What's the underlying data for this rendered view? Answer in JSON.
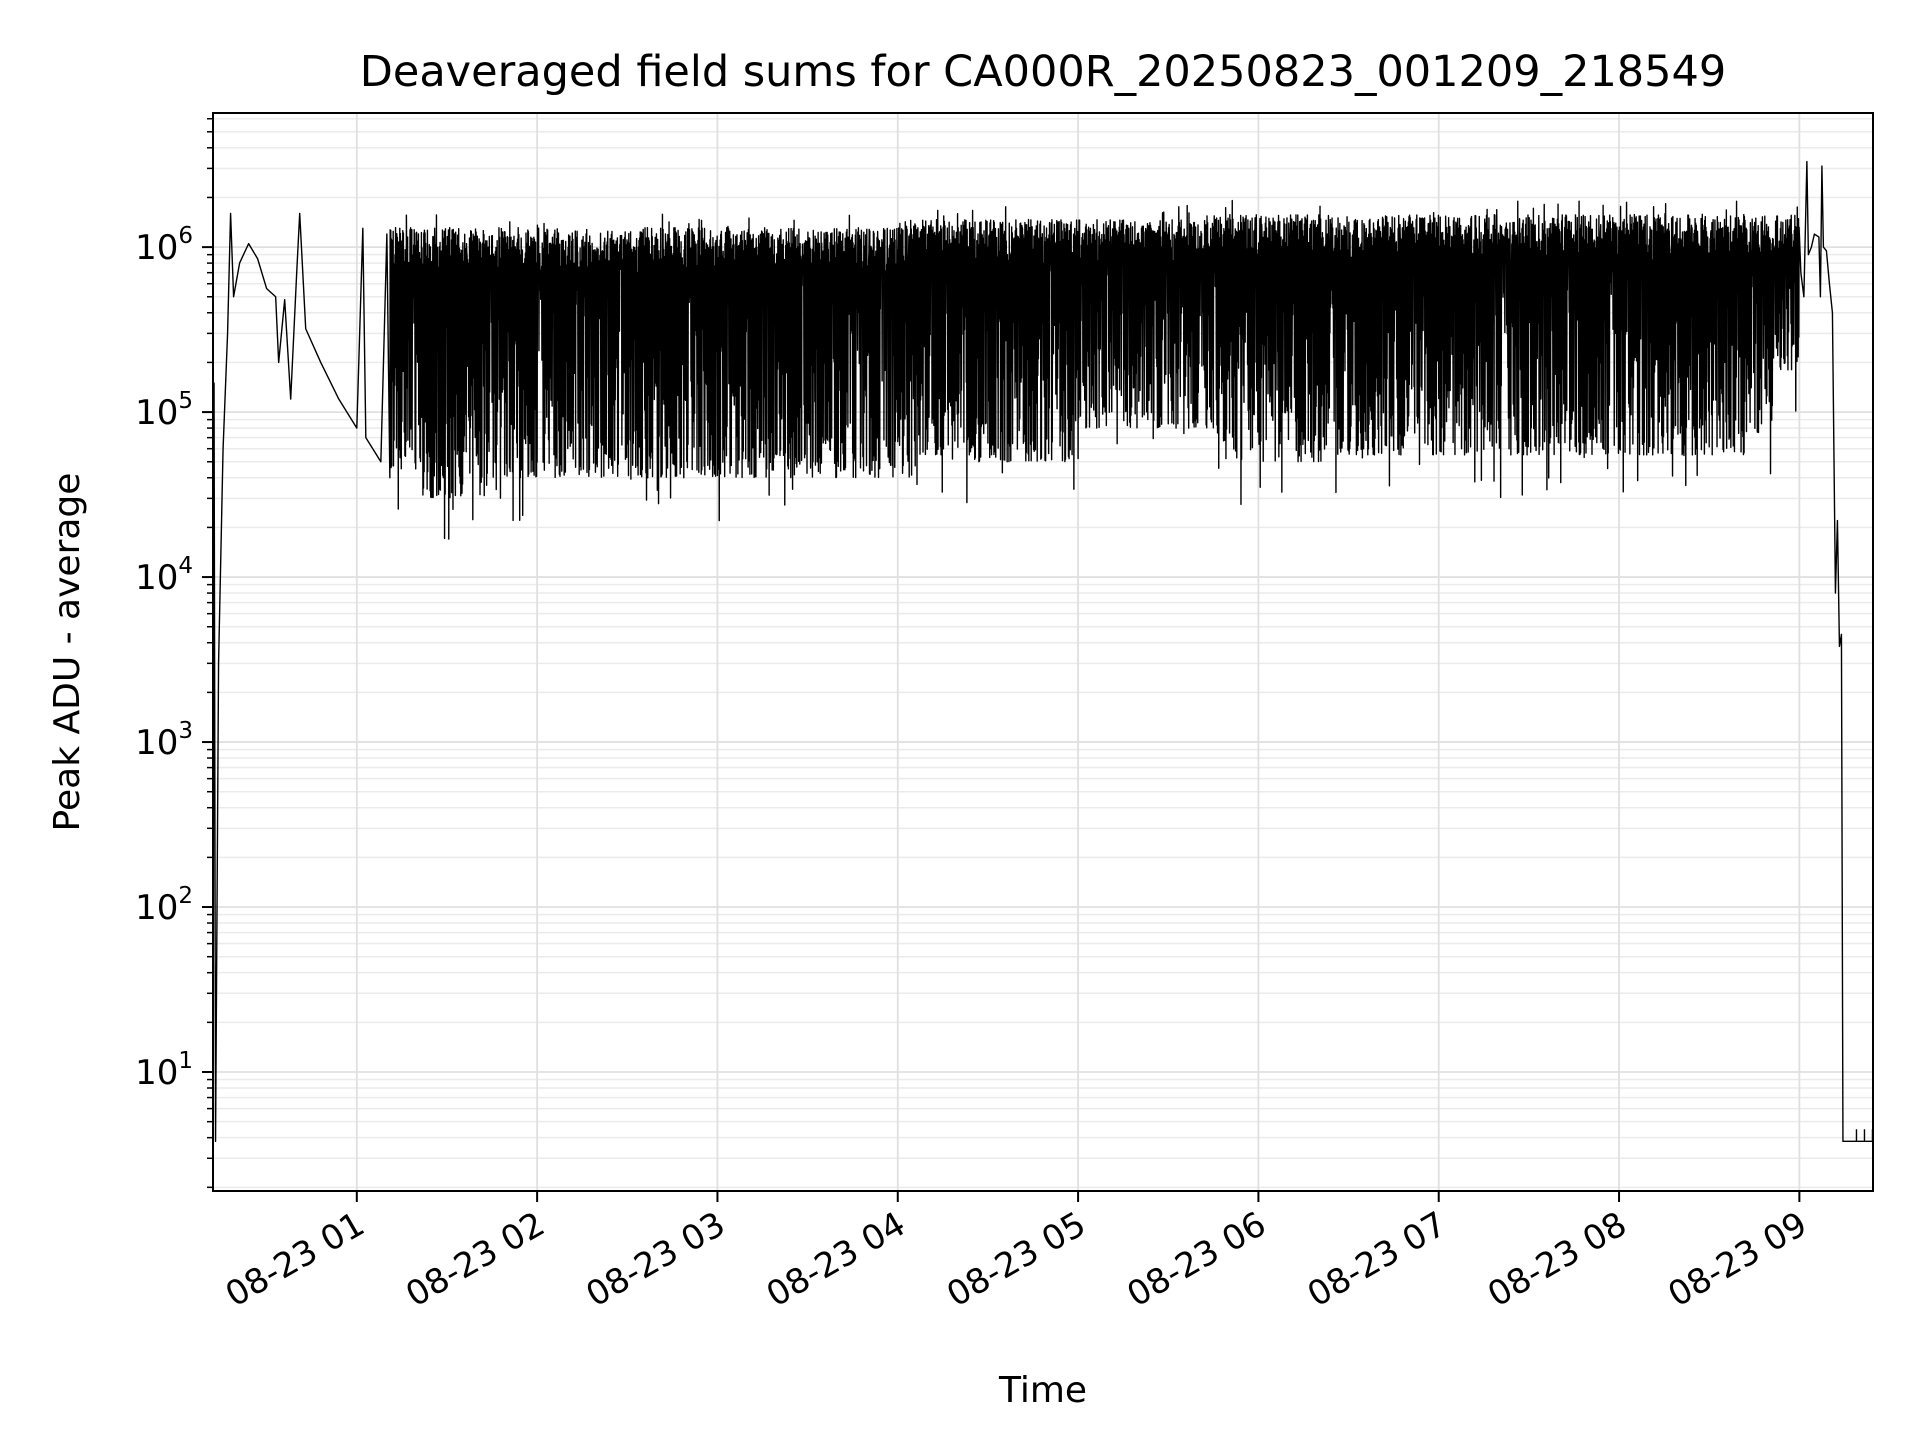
{
  "chart_data": {
    "type": "line",
    "title": "Deaveraged field sums for CA000R_20250823_001209_218549",
    "xlabel": "Time",
    "ylabel": "Peak ADU - average",
    "y_scale": "log",
    "grid": true,
    "legend": "none",
    "x_axis": {
      "type": "datetime",
      "range": [
        "2025-08-23 00:12:09",
        "2025-08-23 09:24:30"
      ],
      "tick_values": [
        "2025-08-23 01:00",
        "2025-08-23 02:00",
        "2025-08-23 03:00",
        "2025-08-23 04:00",
        "2025-08-23 05:00",
        "2025-08-23 06:00",
        "2025-08-23 07:00",
        "2025-08-23 08:00",
        "2025-08-23 09:00"
      ],
      "tick_labels": [
        "08-23 01",
        "08-23 02",
        "08-23 03",
        "08-23 04",
        "08-23 05",
        "08-23 06",
        "08-23 07",
        "08-23 08",
        "08-23 09"
      ]
    },
    "y_axis": {
      "range": [
        1.9,
        6500000
      ],
      "ticks": [
        {
          "value": 10,
          "base": "10",
          "exp": "1"
        },
        {
          "value": 100,
          "base": "10",
          "exp": "2"
        },
        {
          "value": 1000,
          "base": "10",
          "exp": "3"
        },
        {
          "value": 10000,
          "base": "10",
          "exp": "4"
        },
        {
          "value": 100000,
          "base": "10",
          "exp": "5"
        },
        {
          "value": 1000000,
          "base": "10",
          "exp": "6"
        }
      ]
    },
    "series": [
      {
        "color": "#000000",
        "points": [
          [
            "2025-08-23 00:12:09",
            1.9
          ],
          [
            "2025-08-23 00:12:30",
            150000
          ],
          [
            "2025-08-23 00:13:00",
            3.8
          ],
          [
            "2025-08-23 00:14:00",
            3000
          ],
          [
            "2025-08-23 00:15:30",
            60000
          ],
          [
            "2025-08-23 00:17:00",
            300000
          ],
          [
            "2025-08-23 00:18:00",
            1600000
          ],
          [
            "2025-08-23 00:19:00",
            500000
          ],
          [
            "2025-08-23 00:21:00",
            800000
          ],
          [
            "2025-08-23 00:24:00",
            1050000
          ],
          [
            "2025-08-23 00:27:00",
            850000
          ],
          [
            "2025-08-23 00:30:00",
            560000
          ],
          [
            "2025-08-23 00:33:00",
            500000
          ],
          [
            "2025-08-23 00:34:00",
            200000
          ],
          [
            "2025-08-23 00:36:00",
            480000
          ],
          [
            "2025-08-23 00:38:00",
            120000
          ],
          [
            "2025-08-23 00:40:00",
            700000
          ],
          [
            "2025-08-23 00:41:00",
            1600000
          ],
          [
            "2025-08-23 00:43:00",
            320000
          ],
          [
            "2025-08-23 00:48:00",
            200000
          ],
          [
            "2025-08-23 00:54:00",
            120000
          ],
          [
            "2025-08-23 01:00:00",
            80000
          ],
          [
            "2025-08-23 01:02:00",
            1300000
          ],
          [
            "2025-08-23 01:03:00",
            70000
          ],
          [
            "2025-08-23 01:08:00",
            50000
          ],
          [
            "2025-08-23 01:10:00",
            1200000
          ],
          [
            "2025-08-23 01:11:00",
            40000
          ]
        ]
      }
    ]
  }
}
